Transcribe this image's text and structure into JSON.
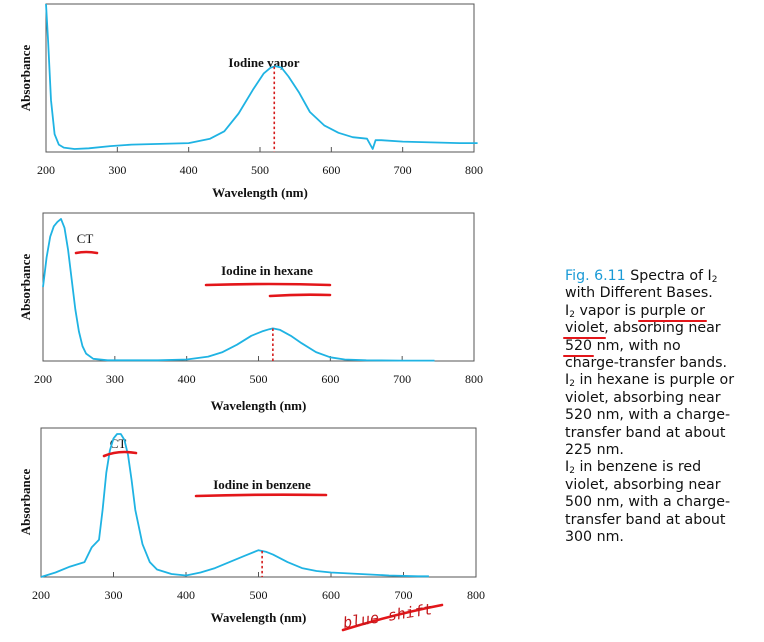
{
  "chart_data": [
    {
      "type": "line",
      "title": "Iodine vapor",
      "xlabel": "Wavelength (nm)",
      "ylabel": "Absorbance",
      "xlim": [
        200,
        800
      ],
      "ylim": [
        0,
        1
      ],
      "x_ticks": [
        "200",
        "300",
        "400",
        "500",
        "600",
        "700",
        "800"
      ],
      "peak_marker_nm": 520,
      "series": [
        {
          "x": [
            200,
            203,
            207,
            212,
            218,
            225,
            240,
            260,
            290,
            320,
            360,
            400,
            430,
            450,
            470,
            490,
            505,
            515,
            522,
            530,
            540,
            555,
            570,
            590,
            610,
            630,
            650,
            658,
            662,
            670,
            700,
            740,
            780,
            805
          ],
          "y": [
            1.0,
            0.75,
            0.35,
            0.12,
            0.05,
            0.03,
            0.02,
            0.025,
            0.04,
            0.05,
            0.055,
            0.06,
            0.09,
            0.14,
            0.26,
            0.42,
            0.53,
            0.57,
            0.58,
            0.57,
            0.51,
            0.4,
            0.27,
            0.18,
            0.13,
            0.1,
            0.09,
            0.02,
            0.08,
            0.08,
            0.07,
            0.065,
            0.06,
            0.06
          ]
        }
      ]
    },
    {
      "type": "line",
      "title": "Iodine in hexane",
      "xlabel": "Wavelength (nm)",
      "ylabel": "Absorbance",
      "xlim": [
        200,
        800
      ],
      "ylim": [
        0,
        1
      ],
      "x_ticks": [
        "200",
        "300",
        "400",
        "500",
        "600",
        "700",
        "800"
      ],
      "annotations": [
        "CT"
      ],
      "peak_marker_nm": 520,
      "series": [
        {
          "x": [
            200,
            205,
            210,
            215,
            220,
            225,
            230,
            235,
            240,
            245,
            250,
            255,
            260,
            270,
            290,
            320,
            360,
            400,
            430,
            450,
            470,
            490,
            505,
            515,
            520,
            530,
            545,
            560,
            580,
            600,
            620,
            650,
            700,
            745
          ],
          "y": [
            0.5,
            0.7,
            0.84,
            0.91,
            0.94,
            0.96,
            0.9,
            0.75,
            0.55,
            0.35,
            0.2,
            0.1,
            0.05,
            0.015,
            0.005,
            0.005,
            0.005,
            0.01,
            0.03,
            0.06,
            0.11,
            0.17,
            0.2,
            0.215,
            0.22,
            0.21,
            0.17,
            0.12,
            0.06,
            0.025,
            0.01,
            0.005,
            0.003,
            0.003
          ]
        }
      ]
    },
    {
      "type": "line",
      "title": "Iodine in benzene",
      "xlabel": "Wavelength (nm)",
      "ylabel": "Absorbance",
      "xlim": [
        200,
        800
      ],
      "ylim": [
        0,
        1
      ],
      "x_ticks": [
        "200",
        "300",
        "400",
        "500",
        "600",
        "700",
        "800"
      ],
      "annotations": [
        "CT"
      ],
      "peak_marker_nm": 505,
      "series": [
        {
          "x": [
            200,
            220,
            240,
            260,
            270,
            280,
            285,
            290,
            295,
            300,
            305,
            310,
            315,
            320,
            325,
            330,
            340,
            350,
            360,
            380,
            400,
            420,
            440,
            460,
            480,
            500,
            510,
            520,
            540,
            560,
            580,
            600,
            640,
            680,
            720,
            735
          ],
          "y": [
            0.0,
            0.03,
            0.07,
            0.1,
            0.2,
            0.25,
            0.45,
            0.7,
            0.85,
            0.93,
            0.96,
            0.96,
            0.92,
            0.82,
            0.65,
            0.45,
            0.22,
            0.1,
            0.05,
            0.02,
            0.01,
            0.03,
            0.06,
            0.1,
            0.14,
            0.18,
            0.17,
            0.15,
            0.1,
            0.06,
            0.04,
            0.03,
            0.02,
            0.01,
            0.005,
            0.005
          ]
        }
      ]
    }
  ],
  "handwriting": {
    "blue_shift": "blue shift"
  },
  "caption": {
    "fig_label": "Fig. 6.11",
    "title_rest": "Spectra of I",
    "title_line2": "with Different Bases.",
    "i2": "I",
    "sub2": "2",
    "vapor_a": "vapor is",
    "vapor_b": "purple or",
    "vapor_c": "violet",
    "vapor_d": ", absorbing near",
    "vapor_e": "520",
    "vapor_f": "nm, with no",
    "vapor_g": "charge-transfer bands.",
    "hex_a": "in hexane is purple or",
    "hex_b": "violet, absorbing near",
    "hex_c": "520 nm, with a charge-",
    "hex_d": "transfer band at about",
    "hex_e": "225 nm.",
    "benz_a": "in benzene is red",
    "benz_b": "violet, absorbing near",
    "benz_c": "500 nm, with a charge-",
    "benz_d": "transfer band at about",
    "benz_e": "300 nm."
  },
  "colors": {
    "curve": "#1fb3e3",
    "ink": "#e3161a",
    "accent": "#1a9ad6"
  }
}
